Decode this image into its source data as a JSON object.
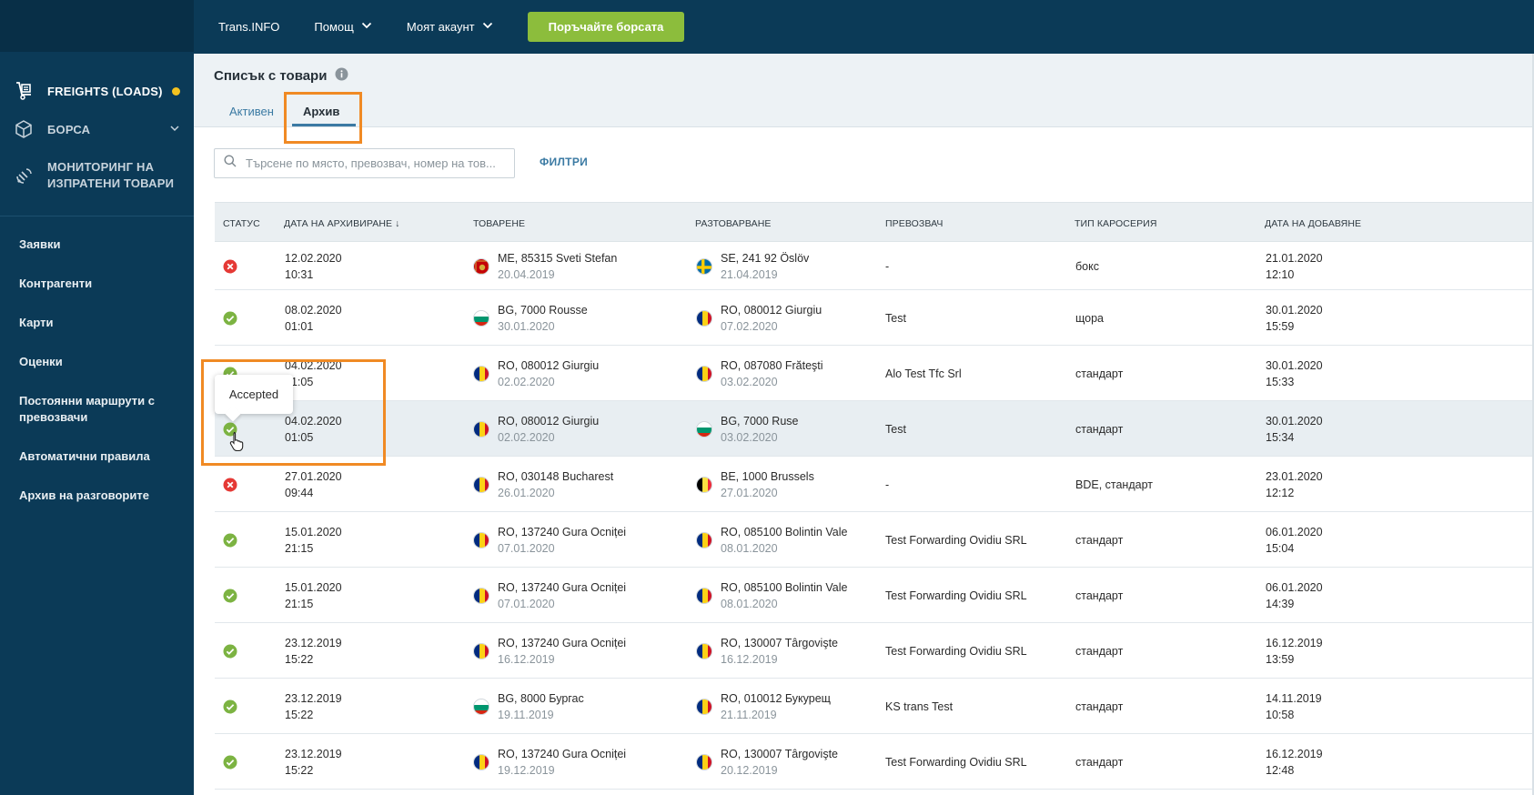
{
  "topbar": {
    "items": [
      "Trans.INFO",
      "Помощ",
      "Моят акаунт"
    ],
    "cta": "Поръчайте борсата"
  },
  "sidebar": {
    "modules": [
      {
        "label": "FREIGHTS (LOADS)",
        "icon": "freight-icon"
      },
      {
        "label": "БОРСА",
        "icon": "cube-icon"
      },
      {
        "label_line1": "МОНИТОРИНГ НА",
        "label_line2": "ИЗПРАТЕНИ ТОВАРИ",
        "icon": "satellite-icon"
      }
    ],
    "links": [
      "Заявки",
      "Контрагенти",
      "Карти",
      "Оценки",
      "Постоянни маршрути с превозвачи",
      "Автоматични правила",
      "Архив на разговорите"
    ]
  },
  "header": {
    "title": "Списък с товари",
    "tabs": [
      "Активен",
      "Архив"
    ]
  },
  "search": {
    "placeholder": "Търсене по място, превозвач, номер на тов...",
    "filters_label": "ФИЛТРИ"
  },
  "table": {
    "headers": [
      "СТАТУС",
      "ДАТА НА АРХИВИРАНЕ ↓",
      "ТОВАРЕНЕ",
      "РАЗТОВАРВАНЕ",
      "ПРЕВОЗВАЧ",
      "ТИП КАРОСЕРИЯ",
      "ДАТА НА ДОБАВЯНЕ"
    ],
    "rows": [
      {
        "status": "rejected",
        "arch_date": "12.02.2020",
        "arch_time": "10:31",
        "load_flag": "ME",
        "load_place": "ME, 85315 Sveti Stefan",
        "load_date": "20.04.2019",
        "unload_flag": "SE",
        "unload_place": "SE, 241 92 Öslöv",
        "unload_date": "21.04.2019",
        "carrier": "-",
        "body": "бокс",
        "add_date": "21.01.2020",
        "add_time": "12:10"
      },
      {
        "status": "accepted",
        "arch_date": "08.02.2020",
        "arch_time": "01:01",
        "load_flag": "BG",
        "load_place": "BG, 7000 Rousse",
        "load_date": "30.01.2020",
        "unload_flag": "RO",
        "unload_place": "RO, 080012 Giurgiu",
        "unload_date": "07.02.2020",
        "carrier": "Test",
        "body": "щора",
        "add_date": "30.01.2020",
        "add_time": "15:59"
      },
      {
        "status": "accepted",
        "arch_date": "04.02.2020",
        "arch_time": "01:05",
        "load_flag": "RO",
        "load_place": "RO, 080012 Giurgiu",
        "load_date": "02.02.2020",
        "unload_flag": "RO",
        "unload_place": "RO, 087080 Frăteşti",
        "unload_date": "03.02.2020",
        "carrier": "Alo Test Tfc Srl",
        "body": "стандарт",
        "add_date": "30.01.2020",
        "add_time": "15:33"
      },
      {
        "status": "accepted",
        "arch_date": "04.02.2020",
        "arch_time": "01:05",
        "load_flag": "RO",
        "load_place": "RO, 080012 Giurgiu",
        "load_date": "02.02.2020",
        "unload_flag": "BG",
        "unload_place": "BG, 7000 Ruse",
        "unload_date": "03.02.2020",
        "carrier": "Test",
        "body": "стандарт",
        "add_date": "30.01.2020",
        "add_time": "15:34"
      },
      {
        "status": "rejected",
        "arch_date": "27.01.2020",
        "arch_time": "09:44",
        "load_flag": "RO",
        "load_place": "RO, 030148 Bucharest",
        "load_date": "26.01.2020",
        "unload_flag": "BE",
        "unload_place": "BE, 1000 Brussels",
        "unload_date": "27.01.2020",
        "carrier": "-",
        "body": "BDE, стандарт",
        "add_date": "23.01.2020",
        "add_time": "12:12"
      },
      {
        "status": "accepted",
        "arch_date": "15.01.2020",
        "arch_time": "21:15",
        "load_flag": "RO",
        "load_place": "RO, 137240 Gura Ocniței",
        "load_date": "07.01.2020",
        "unload_flag": "RO",
        "unload_place": "RO, 085100 Bolintin Vale",
        "unload_date": "08.01.2020",
        "carrier": "Test Forwarding Ovidiu SRL",
        "body": "стандарт",
        "add_date": "06.01.2020",
        "add_time": "15:04"
      },
      {
        "status": "accepted",
        "arch_date": "15.01.2020",
        "arch_time": "21:15",
        "load_flag": "RO",
        "load_place": "RO, 137240 Gura Ocniței",
        "load_date": "07.01.2020",
        "unload_flag": "RO",
        "unload_place": "RO, 085100 Bolintin Vale",
        "unload_date": "08.01.2020",
        "carrier": "Test Forwarding Ovidiu SRL",
        "body": "стандарт",
        "add_date": "06.01.2020",
        "add_time": "14:39"
      },
      {
        "status": "accepted",
        "arch_date": "23.12.2019",
        "arch_time": "15:22",
        "load_flag": "RO",
        "load_place": "RO, 137240 Gura Ocniței",
        "load_date": "16.12.2019",
        "unload_flag": "RO",
        "unload_place": "RO, 130007 Târgovişte",
        "unload_date": "16.12.2019",
        "carrier": "Test Forwarding Ovidiu SRL",
        "body": "стандарт",
        "add_date": "16.12.2019",
        "add_time": "13:59"
      },
      {
        "status": "accepted",
        "arch_date": "23.12.2019",
        "arch_time": "15:22",
        "load_flag": "BG",
        "load_place": "BG, 8000 Бургас",
        "load_date": "19.11.2019",
        "unload_flag": "RO",
        "unload_place": "RO, 010012 Букурещ",
        "unload_date": "21.11.2019",
        "carrier": "KS trans Test",
        "body": "стандарт",
        "add_date": "14.11.2019",
        "add_time": "10:58"
      },
      {
        "status": "accepted",
        "arch_date": "23.12.2019",
        "arch_time": "15:22",
        "load_flag": "RO",
        "load_place": "RO, 137240 Gura Ocniței",
        "load_date": "19.12.2019",
        "unload_flag": "RO",
        "unload_place": "RO, 130007 Târgovişte",
        "unload_date": "20.12.2019",
        "carrier": "Test Forwarding Ovidiu SRL",
        "body": "стандарт",
        "add_date": "16.12.2019",
        "add_time": "12:48"
      }
    ]
  },
  "tooltip": {
    "text": "Accepted"
  },
  "colors": {
    "sidebar": "#0b3a57",
    "accent": "#3b7aa3",
    "cta": "#8cbd3c",
    "highlight": "#f08a24",
    "accepted": "#7cb342",
    "rejected": "#e53935"
  }
}
